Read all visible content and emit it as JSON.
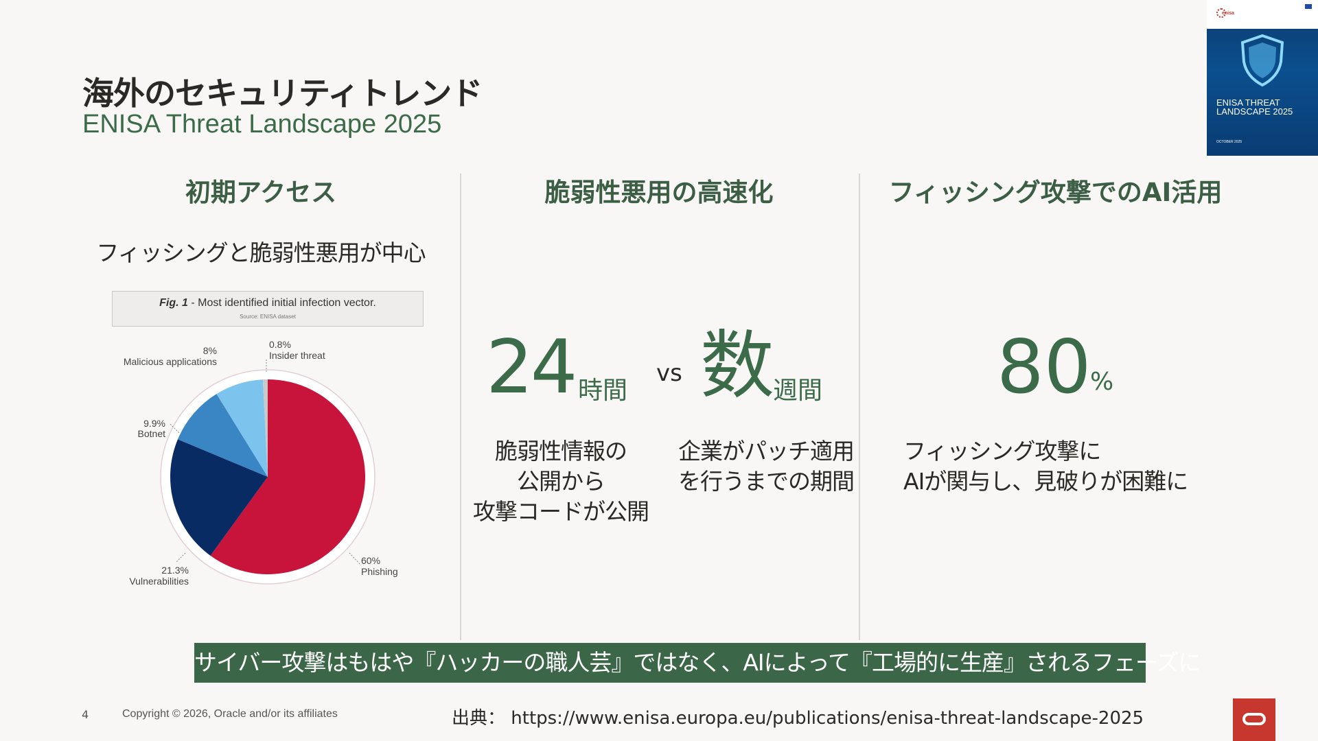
{
  "slide": {
    "title": "海外のセキュリティトレンド",
    "subtitle": "ENISA Threat Landscape 2025"
  },
  "columns": [
    {
      "heading": "初期アクセス",
      "subheading": "フィッシングと脆弱性悪用が中心"
    },
    {
      "heading": "脆弱性悪用の高速化",
      "stat_a_value": "24",
      "stat_a_unit": "時間",
      "vs": "vs",
      "stat_b_value": "数",
      "stat_b_unit": "週間",
      "desc_a": [
        "脆弱性情報の",
        "公開から",
        "攻撃コードが公開"
      ],
      "desc_b": [
        "企業がパッチ適用",
        "を行うまでの期間"
      ]
    },
    {
      "heading": "フィッシング攻撃でのAI活用",
      "stat_value": "80",
      "stat_unit": "%",
      "desc": [
        "フィッシング攻撃に",
        "AIが関与し、見破りが困難に"
      ]
    }
  ],
  "figure": {
    "caption_prefix": "Fig. 1",
    "caption_text": " - Most identified initial infection vector.",
    "source": "Source: ENISA dataset"
  },
  "chart_data": {
    "type": "pie",
    "title": "Most identified initial infection vector.",
    "categories": [
      "Phishing",
      "Vulnerabilities",
      "Botnet",
      "Malicious applications",
      "Insider threat"
    ],
    "values": [
      60,
      21.3,
      9.9,
      8,
      0.8
    ],
    "value_labels": [
      "60%",
      "21.3%",
      "9.9%",
      "8%",
      "0.8%"
    ],
    "colors": [
      "#c8143b",
      "#082b63",
      "#3a86c4",
      "#7cc3ee",
      "#c9c9c9"
    ]
  },
  "banner": "サイバー攻撃はもはや『ハッカーの職人芸』ではなく、AIによって『工場的に生産』されるフェーズに",
  "footer": {
    "page_number": "4",
    "copyright": "Copyright © 2026, Oracle and/or its affiliates",
    "source": "出典： https://www.enisa.europa.eu/publications/enisa-threat-landscape-2025"
  },
  "cover": {
    "logo_text": "enisa",
    "title_line1": "ENISA THREAT",
    "title_line2": "LANDSCAPE 2025",
    "date": "OCTOBER 2025"
  },
  "icons": {
    "oracle_logo": "oracle-logo-icon",
    "shield": "shield-icon"
  }
}
